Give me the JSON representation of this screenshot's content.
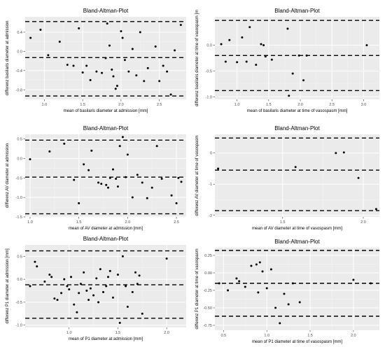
{
  "chart_data": [
    {
      "type": "scatter",
      "title": "Bland-Altman-Plot",
      "xlabel": "mean of basilaris diameter at admission [mm]",
      "ylabel": "differenz basilaris diameter at admission",
      "xlim": [
        0.75,
        2.85
      ],
      "ylim": [
        -1.0,
        0.72
      ],
      "xticks": [
        1.0,
        1.5,
        2.0,
        2.5
      ],
      "yticks": [
        0.4,
        0.0,
        -0.4,
        -0.8
      ],
      "xtick_labels": [
        "1.0",
        "1.5",
        "2.0",
        "2.5"
      ],
      "ytick_labels": [
        "0.4",
        "0.0",
        "-0.4",
        "-0.8"
      ],
      "grid": true,
      "reference_lines": [
        0.62,
        -0.13,
        -0.93
      ],
      "points": [
        [
          0.82,
          0.28
        ],
        [
          0.95,
          0.45
        ],
        [
          1.05,
          -0.08
        ],
        [
          1.2,
          0.2
        ],
        [
          1.3,
          -0.28
        ],
        [
          1.38,
          -0.3
        ],
        [
          1.45,
          0.48
        ],
        [
          1.5,
          -0.44
        ],
        [
          1.55,
          -0.3
        ],
        [
          1.6,
          -0.6
        ],
        [
          1.68,
          -0.42
        ],
        [
          1.75,
          -0.45
        ],
        [
          1.8,
          -0.14
        ],
        [
          1.82,
          0.58
        ],
        [
          1.85,
          0.12
        ],
        [
          1.88,
          -0.38
        ],
        [
          1.9,
          -0.52
        ],
        [
          1.93,
          -0.78
        ],
        [
          1.95,
          -0.72
        ],
        [
          2.0,
          0.42
        ],
        [
          2.02,
          0.28
        ],
        [
          2.05,
          -0.18
        ],
        [
          2.1,
          -0.42
        ],
        [
          2.15,
          0.05
        ],
        [
          2.2,
          -0.5
        ],
        [
          2.25,
          0.4
        ],
        [
          2.3,
          -0.62
        ],
        [
          2.35,
          -0.35
        ],
        [
          2.45,
          0.1
        ],
        [
          2.5,
          -0.62
        ],
        [
          2.55,
          -0.3
        ],
        [
          2.6,
          -0.42
        ],
        [
          2.65,
          -0.9
        ],
        [
          2.7,
          0.02
        ],
        [
          2.78,
          0.55
        ]
      ]
    },
    {
      "type": "scatter",
      "title": "Bland-Altman-Plot",
      "xlabel": "mean of basilaris diameter at time of vasospasm [mm]",
      "ylabel": "differenz basilaris diameter at time of vasospasm [m",
      "xlim": [
        0.65,
        3.25
      ],
      "ylim": [
        -1.05,
        0.55
      ],
      "xticks": [
        1.0,
        1.5,
        2.0,
        2.5,
        3.0
      ],
      "yticks": [
        0.0,
        -0.5,
        -1.0
      ],
      "xtick_labels": [
        "1.0",
        "1.5",
        "2.0",
        "2.5",
        "3.0"
      ],
      "ytick_labels": [
        "0.0",
        "-0.5",
        "-1.0"
      ],
      "grid": true,
      "reference_lines": [
        0.48,
        -0.2,
        -0.88
      ],
      "points": [
        [
          0.75,
          0.02
        ],
        [
          0.82,
          -0.32
        ],
        [
          0.88,
          0.1
        ],
        [
          1.0,
          -0.33
        ],
        [
          1.08,
          0.15
        ],
        [
          1.15,
          -0.32
        ],
        [
          1.2,
          0.35
        ],
        [
          1.3,
          -0.38
        ],
        [
          1.38,
          0.02
        ],
        [
          1.42,
          0.0
        ],
        [
          1.45,
          -0.22
        ],
        [
          1.55,
          -0.28
        ],
        [
          1.8,
          0.32
        ],
        [
          1.82,
          -0.98
        ],
        [
          1.88,
          -0.55
        ],
        [
          1.98,
          -0.2
        ],
        [
          2.05,
          -0.68
        ],
        [
          2.1,
          -0.2
        ],
        [
          3.05,
          0.0
        ]
      ]
    },
    {
      "type": "scatter",
      "title": "Bland-Altman-Plot",
      "xlabel": "mean of AV diameter at admission [mm]",
      "ylabel": "differenz AV diameter at admission",
      "xlim": [
        0.95,
        2.6
      ],
      "ylim": [
        -1.5,
        0.62
      ],
      "xticks": [
        1.0,
        1.5,
        2.0,
        2.5
      ],
      "yticks": [
        0.5,
        0.0,
        -0.5,
        -1.0,
        -1.5
      ],
      "xtick_labels": [
        "1.0",
        "1.5",
        "2.0",
        "2.5"
      ],
      "ytick_labels": [
        "0.5",
        "0.0",
        "-0.5",
        "-1.0",
        "-1.5"
      ],
      "grid": true,
      "reference_lines": [
        0.47,
        -0.48,
        -1.42
      ],
      "points": [
        [
          1.0,
          -0.02
        ],
        [
          1.2,
          0.18
        ],
        [
          1.35,
          0.38
        ],
        [
          1.45,
          -0.55
        ],
        [
          1.5,
          -1.15
        ],
        [
          1.55,
          -0.15
        ],
        [
          1.6,
          -0.3
        ],
        [
          1.63,
          0.2
        ],
        [
          1.7,
          -0.62
        ],
        [
          1.73,
          -0.65
        ],
        [
          1.78,
          -0.68
        ],
        [
          1.8,
          -0.75
        ],
        [
          1.82,
          -0.5
        ],
        [
          1.85,
          -0.28
        ],
        [
          1.88,
          -0.52
        ],
        [
          1.9,
          -0.72
        ],
        [
          1.92,
          0.32
        ],
        [
          1.95,
          0.55
        ],
        [
          1.98,
          -0.48
        ],
        [
          2.0,
          0.1
        ],
        [
          2.05,
          -1.0
        ],
        [
          2.1,
          -0.42
        ],
        [
          2.15,
          -0.62
        ],
        [
          2.2,
          -1.02
        ],
        [
          2.25,
          -0.75
        ],
        [
          2.3,
          0.32
        ],
        [
          2.35,
          -0.52
        ],
        [
          2.45,
          -0.95
        ],
        [
          2.5,
          -1.15
        ],
        [
          2.52,
          -0.5
        ],
        [
          2.55,
          -0.6
        ]
      ]
    },
    {
      "type": "scatter",
      "title": "Bland-Altman-Plot",
      "xlabel": "mean of AV diameter at time of vasospasm [mm]",
      "ylabel": "differenz AV diameter at time of vasospasm",
      "xlim": [
        1.08,
        2.1
      ],
      "ylim": [
        -2.05,
        0.6
      ],
      "xticks": [
        1.5,
        2.0
      ],
      "yticks": [
        0,
        -1,
        -2
      ],
      "xtick_labels": [
        "1.5",
        "2.0"
      ],
      "ytick_labels": [
        "0",
        "-1",
        "-2"
      ],
      "grid": true,
      "reference_lines": [
        0.48,
        -0.55,
        -1.85
      ],
      "points": [
        [
          1.1,
          -0.5
        ],
        [
          1.58,
          -0.45
        ],
        [
          1.83,
          0.0
        ],
        [
          1.88,
          0.02
        ],
        [
          1.97,
          -0.8
        ],
        [
          2.08,
          -1.8
        ]
      ]
    },
    {
      "type": "scatter",
      "title": "Bland-Altman-Plot",
      "xlabel": "mean of P1 diameter at admission [mm]",
      "ylabel": "differenz P1 diameter at admission [mm]",
      "xlim": [
        0.55,
        2.2
      ],
      "ylim": [
        -1.05,
        0.75
      ],
      "xticks": [
        1.0,
        1.5,
        2.0
      ],
      "yticks": [
        0.5,
        0.0,
        -0.5,
        -1.0
      ],
      "xtick_labels": [
        "1.0",
        "1.5",
        "2.0"
      ],
      "ytick_labels": [
        "0.5",
        "0.0",
        "-0.5",
        "-1.0"
      ],
      "grid": true,
      "reference_lines": [
        0.62,
        -0.12,
        -0.85
      ],
      "points": [
        [
          0.6,
          -0.15
        ],
        [
          0.65,
          0.38
        ],
        [
          0.67,
          0.28
        ],
        [
          0.75,
          -0.05
        ],
        [
          0.8,
          0.1
        ],
        [
          0.82,
          0.05
        ],
        [
          0.85,
          -0.42
        ],
        [
          0.88,
          -0.45
        ],
        [
          0.92,
          -0.3
        ],
        [
          0.95,
          0.0
        ],
        [
          0.98,
          -0.15
        ],
        [
          1.0,
          -0.22
        ],
        [
          1.02,
          0.05
        ],
        [
          1.05,
          -0.55
        ],
        [
          1.08,
          -0.72
        ],
        [
          1.1,
          -0.3
        ],
        [
          1.12,
          -0.1
        ],
        [
          1.15,
          0.15
        ],
        [
          1.18,
          -0.25
        ],
        [
          1.2,
          -0.45
        ],
        [
          1.22,
          -0.2
        ],
        [
          1.25,
          -0.35
        ],
        [
          1.28,
          0.02
        ],
        [
          1.3,
          -0.5
        ],
        [
          1.32,
          0.22
        ],
        [
          1.35,
          -0.28
        ],
        [
          1.38,
          -0.15
        ],
        [
          1.4,
          0.05
        ],
        [
          1.42,
          0.18
        ],
        [
          1.45,
          -0.4
        ],
        [
          1.5,
          0.1
        ],
        [
          1.52,
          -0.95
        ],
        [
          1.55,
          0.5
        ],
        [
          1.58,
          -0.15
        ],
        [
          1.6,
          -0.6
        ],
        [
          1.65,
          -0.28
        ],
        [
          1.68,
          0.15
        ],
        [
          1.7,
          -0.1
        ],
        [
          1.72,
          0.08
        ],
        [
          1.75,
          -0.75
        ],
        [
          2.0,
          0.45
        ]
      ]
    },
    {
      "type": "scatter",
      "title": "Bland-Altman-Plot",
      "xlabel": "mean of P1 diameter at time of vasospasm [mm]",
      "ylabel": "differenz P1 diameter at time of vasospasm",
      "xlim": [
        0.4,
        2.3
      ],
      "ylim": [
        -0.82,
        0.36
      ],
      "xticks": [
        0.5,
        1.0,
        1.5,
        2.0
      ],
      "yticks": [
        0.25,
        0.0,
        -0.25,
        -0.5,
        -0.75
      ],
      "xtick_labels": [
        "0.5",
        "1.0",
        "1.5",
        "2.0"
      ],
      "ytick_labels": [
        "0.25",
        "0.00",
        "-0.25",
        "-0.50",
        "-0.75"
      ],
      "grid": true,
      "reference_lines": [
        0.32,
        -0.15,
        -0.62
      ],
      "points": [
        [
          0.45,
          -0.15
        ],
        [
          0.55,
          -0.25
        ],
        [
          0.65,
          -0.08
        ],
        [
          0.68,
          -0.12
        ],
        [
          0.75,
          -0.2
        ],
        [
          0.82,
          0.1
        ],
        [
          0.88,
          0.12
        ],
        [
          0.9,
          -0.28
        ],
        [
          0.92,
          0.15
        ],
        [
          0.95,
          0.02
        ],
        [
          1.0,
          -0.22
        ],
        [
          1.05,
          0.05
        ],
        [
          1.1,
          -0.5
        ],
        [
          1.15,
          -0.72
        ],
        [
          1.2,
          -0.3
        ],
        [
          1.25,
          -0.45
        ],
        [
          1.3,
          -0.15
        ],
        [
          1.38,
          -0.42
        ],
        [
          2.0,
          -0.1
        ],
        [
          2.2,
          -0.15
        ]
      ]
    }
  ]
}
